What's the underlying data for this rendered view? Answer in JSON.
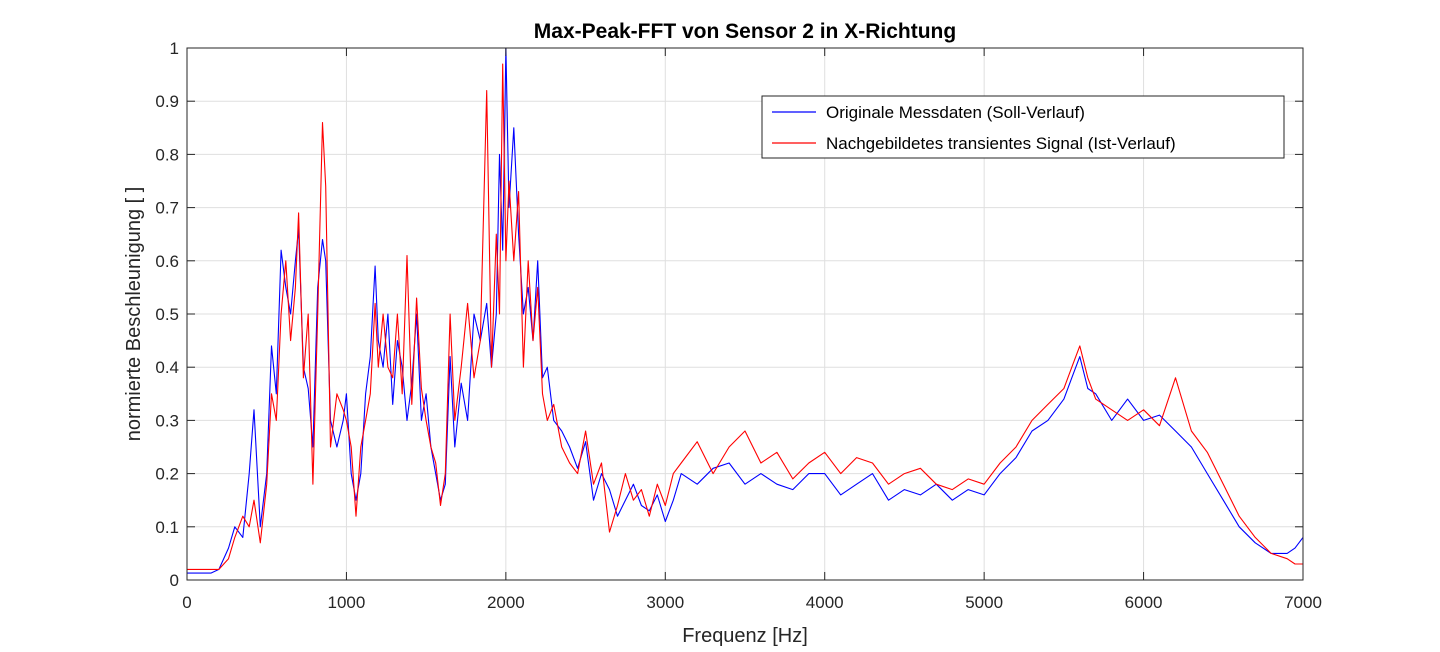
{
  "chart_data": {
    "type": "line",
    "title": "Max-Peak-FFT von Sensor 2 in X-Richtung",
    "xlabel": "Frequenz [Hz]",
    "ylabel": "normierte Beschleunigung [ ]",
    "xlim": [
      0,
      7000
    ],
    "ylim": [
      0,
      1
    ],
    "xticks": [
      0,
      1000,
      2000,
      3000,
      4000,
      5000,
      6000,
      7000
    ],
    "xtick_labels": [
      "0",
      "1000",
      "2000",
      "3000",
      "4000",
      "5000",
      "6000",
      "7000"
    ],
    "yticks": [
      0,
      0.1,
      0.2,
      0.3,
      0.4,
      0.5,
      0.6,
      0.7,
      0.8,
      0.9,
      1
    ],
    "ytick_labels": [
      "0",
      "0.1",
      "0.2",
      "0.3",
      "0.4",
      "0.5",
      "0.6",
      "0.7",
      "0.8",
      "0.9",
      "1"
    ],
    "grid": true,
    "legend_position": "top-right",
    "series": [
      {
        "name": "Originale Messdaten (Soll-Verlauf)",
        "color": "#0000ff",
        "x": [
          0,
          150,
          200,
          260,
          300,
          350,
          390,
          420,
          460,
          500,
          530,
          560,
          590,
          620,
          650,
          680,
          700,
          730,
          760,
          790,
          820,
          850,
          870,
          900,
          940,
          980,
          1000,
          1030,
          1060,
          1090,
          1120,
          1150,
          1180,
          1200,
          1230,
          1260,
          1290,
          1320,
          1350,
          1380,
          1410,
          1440,
          1470,
          1500,
          1530,
          1560,
          1590,
          1620,
          1650,
          1680,
          1720,
          1760,
          1800,
          1840,
          1880,
          1910,
          1940,
          1960,
          1980,
          2000,
          2020,
          2050,
          2080,
          2110,
          2140,
          2170,
          2200,
          2230,
          2260,
          2300,
          2350,
          2400,
          2450,
          2500,
          2550,
          2600,
          2650,
          2700,
          2750,
          2800,
          2850,
          2900,
          2950,
          3000,
          3050,
          3100,
          3200,
          3300,
          3400,
          3500,
          3600,
          3700,
          3800,
          3900,
          4000,
          4100,
          4200,
          4300,
          4400,
          4500,
          4600,
          4700,
          4800,
          4900,
          5000,
          5100,
          5200,
          5300,
          5400,
          5500,
          5550,
          5600,
          5650,
          5700,
          5800,
          5900,
          6000,
          6100,
          6200,
          6300,
          6400,
          6500,
          6600,
          6700,
          6800,
          6900,
          6950,
          7000
        ],
        "y": [
          0.013,
          0.013,
          0.02,
          0.06,
          0.1,
          0.08,
          0.2,
          0.32,
          0.1,
          0.2,
          0.44,
          0.35,
          0.62,
          0.55,
          0.5,
          0.6,
          0.66,
          0.4,
          0.36,
          0.25,
          0.55,
          0.64,
          0.6,
          0.3,
          0.25,
          0.3,
          0.35,
          0.2,
          0.15,
          0.2,
          0.35,
          0.42,
          0.59,
          0.45,
          0.4,
          0.5,
          0.33,
          0.45,
          0.4,
          0.3,
          0.37,
          0.5,
          0.3,
          0.35,
          0.25,
          0.2,
          0.15,
          0.18,
          0.42,
          0.25,
          0.37,
          0.3,
          0.5,
          0.45,
          0.52,
          0.4,
          0.5,
          0.8,
          0.62,
          1.0,
          0.7,
          0.85,
          0.65,
          0.5,
          0.55,
          0.45,
          0.6,
          0.38,
          0.4,
          0.3,
          0.28,
          0.25,
          0.21,
          0.26,
          0.15,
          0.2,
          0.17,
          0.12,
          0.15,
          0.18,
          0.14,
          0.13,
          0.16,
          0.11,
          0.15,
          0.2,
          0.18,
          0.21,
          0.22,
          0.18,
          0.2,
          0.18,
          0.17,
          0.2,
          0.2,
          0.16,
          0.18,
          0.2,
          0.15,
          0.17,
          0.16,
          0.18,
          0.15,
          0.17,
          0.16,
          0.2,
          0.23,
          0.28,
          0.3,
          0.34,
          0.38,
          0.42,
          0.36,
          0.35,
          0.3,
          0.34,
          0.3,
          0.31,
          0.28,
          0.25,
          0.2,
          0.15,
          0.1,
          0.07,
          0.05,
          0.05,
          0.06,
          0.08
        ]
      },
      {
        "name": "Nachgebildetes transientes Signal (Ist-Verlauf)",
        "color": "#ff0000",
        "x": [
          0,
          150,
          200,
          260,
          300,
          350,
          390,
          420,
          460,
          500,
          530,
          560,
          590,
          620,
          650,
          680,
          700,
          730,
          760,
          790,
          820,
          850,
          870,
          900,
          940,
          980,
          1000,
          1030,
          1060,
          1090,
          1120,
          1150,
          1180,
          1200,
          1230,
          1260,
          1290,
          1320,
          1350,
          1380,
          1410,
          1440,
          1470,
          1500,
          1530,
          1560,
          1590,
          1620,
          1650,
          1680,
          1720,
          1760,
          1800,
          1840,
          1880,
          1910,
          1940,
          1960,
          1980,
          2000,
          2020,
          2050,
          2080,
          2110,
          2140,
          2170,
          2200,
          2230,
          2260,
          2300,
          2350,
          2400,
          2450,
          2500,
          2550,
          2600,
          2650,
          2700,
          2750,
          2800,
          2850,
          2900,
          2950,
          3000,
          3050,
          3100,
          3200,
          3300,
          3400,
          3500,
          3600,
          3700,
          3800,
          3900,
          4000,
          4100,
          4200,
          4300,
          4400,
          4500,
          4600,
          4700,
          4800,
          4900,
          5000,
          5100,
          5200,
          5300,
          5400,
          5500,
          5550,
          5600,
          5650,
          5700,
          5800,
          5900,
          6000,
          6100,
          6200,
          6300,
          6400,
          6500,
          6600,
          6700,
          6800,
          6900,
          6950,
          7000
        ],
        "y": [
          0.02,
          0.02,
          0.02,
          0.04,
          0.08,
          0.12,
          0.1,
          0.15,
          0.07,
          0.18,
          0.35,
          0.3,
          0.5,
          0.6,
          0.45,
          0.55,
          0.69,
          0.38,
          0.5,
          0.18,
          0.5,
          0.86,
          0.74,
          0.25,
          0.35,
          0.32,
          0.3,
          0.25,
          0.12,
          0.25,
          0.3,
          0.35,
          0.52,
          0.4,
          0.5,
          0.4,
          0.38,
          0.5,
          0.35,
          0.61,
          0.33,
          0.53,
          0.36,
          0.3,
          0.25,
          0.22,
          0.14,
          0.2,
          0.5,
          0.3,
          0.4,
          0.52,
          0.38,
          0.45,
          0.92,
          0.4,
          0.65,
          0.5,
          0.97,
          0.6,
          0.75,
          0.6,
          0.73,
          0.4,
          0.6,
          0.45,
          0.55,
          0.35,
          0.3,
          0.33,
          0.25,
          0.22,
          0.2,
          0.28,
          0.18,
          0.22,
          0.09,
          0.14,
          0.2,
          0.15,
          0.17,
          0.12,
          0.18,
          0.14,
          0.2,
          0.22,
          0.26,
          0.2,
          0.25,
          0.28,
          0.22,
          0.24,
          0.19,
          0.22,
          0.24,
          0.2,
          0.23,
          0.22,
          0.18,
          0.2,
          0.21,
          0.18,
          0.17,
          0.19,
          0.18,
          0.22,
          0.25,
          0.3,
          0.33,
          0.36,
          0.4,
          0.44,
          0.38,
          0.34,
          0.32,
          0.3,
          0.32,
          0.29,
          0.38,
          0.28,
          0.24,
          0.18,
          0.12,
          0.08,
          0.05,
          0.04,
          0.03,
          0.03
        ]
      }
    ]
  }
}
